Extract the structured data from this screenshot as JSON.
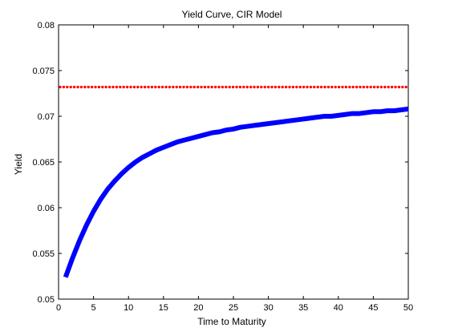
{
  "chart_data": {
    "type": "line",
    "title": "Yield Curve, CIR Model",
    "xlabel": "Time to Maturity",
    "ylabel": "Yield",
    "xlim": [
      0,
      50
    ],
    "ylim": [
      0.05,
      0.08
    ],
    "xticks": [
      0,
      5,
      10,
      15,
      20,
      25,
      30,
      35,
      40,
      45,
      50
    ],
    "xtick_labels": [
      "0",
      "5",
      "10",
      "15",
      "20",
      "25",
      "30",
      "35",
      "40",
      "45",
      "50"
    ],
    "yticks": [
      0.05,
      0.055,
      0.06,
      0.065,
      0.07,
      0.075,
      0.08
    ],
    "ytick_labels": [
      "0.05",
      "0.055",
      "0.06",
      "0.065",
      "0.07",
      "0.075",
      "0.08"
    ],
    "grid": false,
    "series": [
      {
        "style": "solid-thick",
        "color": "#0000ff",
        "x": [
          1,
          2,
          3,
          4,
          5,
          6,
          7,
          8,
          9,
          10,
          11,
          12,
          13,
          14,
          15,
          16,
          17,
          18,
          19,
          20,
          21,
          22,
          23,
          24,
          25,
          26,
          27,
          28,
          29,
          30,
          31,
          32,
          33,
          34,
          35,
          36,
          37,
          38,
          39,
          40,
          41,
          42,
          43,
          44,
          45,
          46,
          47,
          48,
          49,
          50
        ],
        "y": [
          0.0524,
          0.0545,
          0.0564,
          0.0581,
          0.0596,
          0.0609,
          0.062,
          0.0629,
          0.0637,
          0.0644,
          0.065,
          0.0655,
          0.0659,
          0.0663,
          0.0666,
          0.0669,
          0.0672,
          0.0674,
          0.0676,
          0.0678,
          0.068,
          0.0682,
          0.0683,
          0.0685,
          0.0686,
          0.0688,
          0.0689,
          0.069,
          0.0691,
          0.0692,
          0.0693,
          0.0694,
          0.0695,
          0.0696,
          0.0697,
          0.0698,
          0.0699,
          0.07,
          0.07,
          0.0701,
          0.0702,
          0.0703,
          0.0703,
          0.0704,
          0.0705,
          0.0705,
          0.0706,
          0.0706,
          0.0707,
          0.0708
        ]
      },
      {
        "style": "dotted",
        "color": "#ff0000",
        "x": [
          0,
          50
        ],
        "y": [
          0.0732,
          0.0732
        ]
      }
    ]
  }
}
